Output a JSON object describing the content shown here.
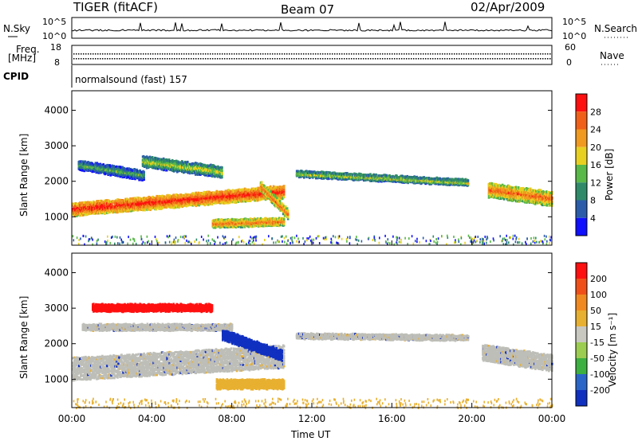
{
  "header": {
    "station": "TIGER (fitACF)",
    "beam": "Beam 07",
    "date": "02/Apr/2009"
  },
  "aux_panels": {
    "nsky_label": "N.Sky",
    "nsky_ticks": [
      "10^5",
      "10^0"
    ],
    "nsearch_label": "N.Search",
    "freq_label_1": "Freq.",
    "freq_label_2": "[MHz]",
    "freq_ticks": [
      "18",
      "8"
    ],
    "nave_label": "Nave",
    "nave_ticks": [
      "60",
      "0"
    ],
    "cpid_label": "CPID",
    "cpid_text": "normalsound (fast) 157"
  },
  "colors": {
    "power_scale": [
      "#1010ff",
      "#2a5caa",
      "#2f8a6a",
      "#58b848",
      "#e8d020",
      "#f09a20",
      "#f06018",
      "#ff1010"
    ],
    "velocity_scale": [
      "#1030c0",
      "#2a66c8",
      "#3cb040",
      "#9ccc50",
      "#c8c8c0",
      "#e8b030",
      "#f08a20",
      "#f05018",
      "#ff1010"
    ],
    "ground_grey": "#bebeb8"
  },
  "chart_data": [
    {
      "type": "heatmap",
      "panel": "power",
      "ylabel": "Slant Range [km]",
      "yticks": [
        "1000",
        "2000",
        "3000",
        "4000"
      ],
      "ylim": [
        200,
        4550
      ],
      "xlim_hours": [
        0,
        24
      ],
      "colorbar_label": "Power [dB]",
      "colorbar_ticks": [
        "4",
        "8",
        "12",
        "16",
        "20",
        "24",
        "28"
      ],
      "bands": [
        {
          "name": "main-band",
          "t0": 0.0,
          "t1": 10.6,
          "r_start": 1250,
          "r_end": 1750,
          "width": 350,
          "level": 7
        },
        {
          "name": "upper-band-a",
          "t0": 0.3,
          "t1": 3.6,
          "r_start": 2500,
          "r_end": 2200,
          "width": 250,
          "level": 3
        },
        {
          "name": "upper-band-b",
          "t0": 3.5,
          "t1": 7.5,
          "r_start": 2600,
          "r_end": 2300,
          "width": 300,
          "level": 4
        },
        {
          "name": "mid-band",
          "t0": 11.2,
          "t1": 19.8,
          "r_start": 2250,
          "r_end": 2000,
          "width": 150,
          "level": 4
        },
        {
          "name": "late-band",
          "t0": 20.8,
          "t1": 24.0,
          "r_start": 1800,
          "r_end": 1550,
          "width": 400,
          "level": 6
        },
        {
          "name": "low-band",
          "t0": 7.0,
          "t1": 10.6,
          "r_start": 850,
          "r_end": 900,
          "width": 200,
          "level": 6
        },
        {
          "name": "spike-band",
          "t0": 9.4,
          "t1": 10.8,
          "r_start": 1900,
          "r_end": 1100,
          "width": 250,
          "level": 6
        }
      ],
      "noise": {
        "r_min": 250,
        "r_max": 500,
        "level": 1
      }
    },
    {
      "type": "heatmap",
      "panel": "velocity",
      "ylabel": "Slant Range [km]",
      "yticks": [
        "1000",
        "2000",
        "3000",
        "4000"
      ],
      "ylim": [
        200,
        4550
      ],
      "xlim_hours": [
        0,
        24
      ],
      "xticks": [
        "00:00",
        "04:00",
        "08:00",
        "12:00",
        "16:00",
        "20:00",
        "00:00"
      ],
      "xlabel": "Time UT",
      "colorbar_label": "Velocity [m s⁻¹]",
      "colorbar_ticks": [
        "200",
        "100",
        "50",
        "15",
        "-15",
        "-50",
        "-100",
        "-200"
      ],
      "bands": [
        {
          "name": "grey-wide",
          "t0": 0.0,
          "t1": 10.6,
          "r_start": 1350,
          "r_end": 1700,
          "width": 650,
          "level": "grey"
        },
        {
          "name": "grey-upper",
          "t0": 0.5,
          "t1": 8.0,
          "r_start": 2500,
          "r_end": 2500,
          "width": 150,
          "level": "grey"
        },
        {
          "name": "grey-mid",
          "t0": 11.2,
          "t1": 19.8,
          "r_start": 2250,
          "r_end": 2200,
          "width": 120,
          "level": "grey"
        },
        {
          "name": "grey-late",
          "t0": 20.5,
          "t1": 24.0,
          "r_start": 1800,
          "r_end": 1500,
          "width": 450,
          "level": "grey"
        },
        {
          "name": "red-top",
          "t0": 1.0,
          "t1": 7.0,
          "r_start": 3050,
          "r_end": 3050,
          "width": 180,
          "level": "red"
        },
        {
          "name": "blue-cluster",
          "t0": 7.5,
          "t1": 10.5,
          "r_start": 2300,
          "r_end": 1700,
          "width": 280,
          "level": "blue"
        },
        {
          "name": "orange-low",
          "t0": 7.2,
          "t1": 10.6,
          "r_start": 900,
          "r_end": 900,
          "width": 250,
          "level": "orange"
        }
      ],
      "noise": {
        "r_min": 220,
        "r_max": 480,
        "level": "orange"
      }
    }
  ]
}
